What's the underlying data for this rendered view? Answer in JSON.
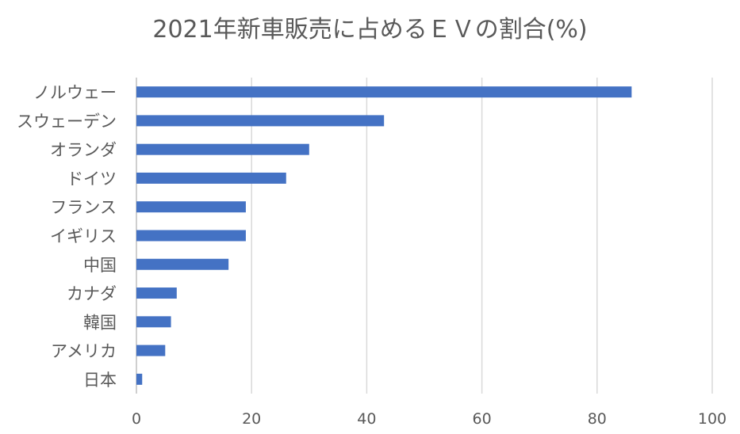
{
  "chart_data": {
    "type": "bar",
    "orientation": "horizontal",
    "title": "2021年新車販売に占めるＥＶの割合(%)",
    "categories": [
      "ノルウェー",
      "スウェーデン",
      "オランダ",
      "ドイツ",
      "フランス",
      "イギリス",
      "中国",
      "カナダ",
      "韓国",
      "アメリカ",
      "日本"
    ],
    "values": [
      86,
      43,
      30,
      26,
      19,
      19,
      16,
      7,
      6,
      5,
      1
    ],
    "xlim": [
      0,
      100
    ],
    "xticks": [
      0,
      20,
      40,
      60,
      80,
      100
    ],
    "xlabel": "",
    "ylabel": "",
    "grid": "vertical",
    "legend": "none",
    "bar_color": "#4472C4",
    "grid_color": "#d9d9d9",
    "text_color": "#595959"
  }
}
